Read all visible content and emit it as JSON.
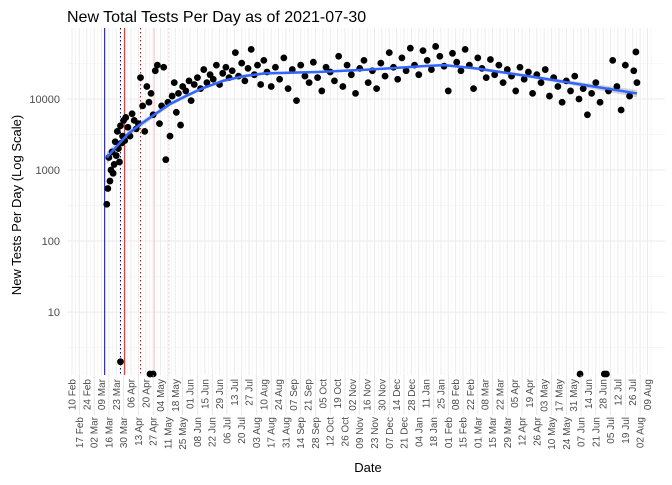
{
  "chart_data": {
    "type": "scatter",
    "title": "New Total Tests Per Day as of 2021-07-30",
    "xlabel": "Date",
    "ylabel": "New Tests Per Day (Log Scale)",
    "y_scale": "log10",
    "ylim": [
      1.3,
      100000
    ],
    "y_ticks": [
      10,
      100,
      1000,
      10000
    ],
    "y_tick_labels": [
      "10",
      "100",
      "1000",
      "10000"
    ],
    "x_axis_start": "2020-02-10",
    "x_tick_step_days": 7,
    "x_tick_labels": [
      "10 Feb",
      "17 Feb",
      "24 Feb",
      "02 Mar",
      "09 Mar",
      "16 Mar",
      "23 Mar",
      "30 Mar",
      "06 Apr",
      "13 Apr",
      "20 Apr",
      "27 Apr",
      "04 May",
      "11 May",
      "18 May",
      "25 May",
      "01 Jun",
      "08 Jun",
      "15 Jun",
      "22 Jun",
      "29 Jun",
      "06 Jul",
      "13 Jul",
      "20 Jul",
      "27 Jul",
      "03 Aug",
      "10 Aug",
      "17 Aug",
      "24 Aug",
      "31 Aug",
      "07 Sep",
      "14 Sep",
      "21 Sep",
      "28 Sep",
      "05 Oct",
      "12 Oct",
      "19 Oct",
      "26 Oct",
      "02 Nov",
      "09 Nov",
      "16 Nov",
      "23 Nov",
      "30 Nov",
      "07 Dec",
      "14 Dec",
      "21 Dec",
      "28 Dec",
      "04 Jan",
      "11 Jan",
      "18 Jan",
      "25 Jan",
      "01 Feb",
      "08 Feb",
      "15 Feb",
      "22 Feb",
      "01 Mar",
      "08 Mar",
      "15 Mar",
      "22 Mar",
      "29 Mar",
      "05 Apr",
      "12 Apr",
      "19 Apr",
      "26 Apr",
      "03 May",
      "10 May",
      "17 May",
      "24 May",
      "31 May",
      "07 Jun",
      "14 Jun",
      "21 Jun",
      "28 Jun",
      "05 Jul",
      "12 Jul",
      "19 Jul",
      "26 Jul",
      "02 Aug",
      "09 Aug"
    ],
    "grid": true,
    "reference_lines": [
      {
        "date": "2020-03-12",
        "color": "#0000ff",
        "style": "solid"
      },
      {
        "date": "2020-03-27",
        "color": "#0000ff",
        "style": "dotted"
      },
      {
        "date": "2020-03-31",
        "color": "#ff0000",
        "style": "solid"
      },
      {
        "date": "2020-04-15",
        "color": "#ff0000",
        "style": "dotted"
      },
      {
        "date": "2020-04-28",
        "color": "#ffc0cb",
        "style": "solid"
      },
      {
        "date": "2020-05-12",
        "color": "#ffc0cb",
        "style": "dotted"
      }
    ],
    "points_start_date": "2020-03-14",
    "points": [
      [
        0,
        330
      ],
      [
        1,
        550
      ],
      [
        2,
        1500
      ],
      [
        3,
        700
      ],
      [
        4,
        1000
      ],
      [
        5,
        1800
      ],
      [
        6,
        900
      ],
      [
        7,
        1200
      ],
      [
        8,
        2500
      ],
      [
        9,
        1600
      ],
      [
        10,
        3500
      ],
      [
        11,
        2000
      ],
      [
        12,
        1300
      ],
      [
        13,
        2
      ],
      [
        13,
        4200
      ],
      [
        14,
        2400
      ],
      [
        15,
        3000
      ],
      [
        16,
        5000
      ],
      [
        17,
        2600
      ],
      [
        18,
        5500
      ],
      [
        20,
        4000
      ],
      [
        22,
        3000
      ],
      [
        24,
        6200
      ],
      [
        26,
        5000
      ],
      [
        28,
        3800
      ],
      [
        30,
        4500
      ],
      [
        32,
        20000
      ],
      [
        34,
        8000
      ],
      [
        36,
        3500
      ],
      [
        38,
        15000
      ],
      [
        40,
        9000
      ],
      [
        41,
        1
      ],
      [
        42,
        12000
      ],
      [
        44,
        1
      ],
      [
        44,
        6000
      ],
      [
        46,
        25000
      ],
      [
        48,
        30000
      ],
      [
        50,
        4500
      ],
      [
        52,
        8000
      ],
      [
        54,
        28000
      ],
      [
        56,
        1400
      ],
      [
        58,
        9000
      ],
      [
        60,
        3000
      ],
      [
        62,
        11000
      ],
      [
        64,
        17000
      ],
      [
        66,
        6500
      ],
      [
        68,
        12000
      ],
      [
        70,
        4300
      ],
      [
        72,
        15000
      ],
      [
        75,
        13000
      ],
      [
        78,
        18000
      ],
      [
        80,
        9500
      ],
      [
        83,
        16000
      ],
      [
        86,
        20000
      ],
      [
        89,
        14000
      ],
      [
        92,
        26000
      ],
      [
        95,
        17000
      ],
      [
        98,
        22000
      ],
      [
        101,
        19000
      ],
      [
        104,
        30000
      ],
      [
        107,
        16000
      ],
      [
        110,
        23000
      ],
      [
        113,
        28000
      ],
      [
        116,
        20000
      ],
      [
        119,
        25000
      ],
      [
        122,
        45000
      ],
      [
        125,
        21000
      ],
      [
        128,
        32000
      ],
      [
        131,
        18000
      ],
      [
        134,
        27000
      ],
      [
        137,
        50000
      ],
      [
        140,
        22000
      ],
      [
        143,
        30000
      ],
      [
        146,
        16000
      ],
      [
        149,
        35000
      ],
      [
        152,
        24000
      ],
      [
        156,
        15000
      ],
      [
        160,
        28000
      ],
      [
        164,
        19000
      ],
      [
        168,
        38000
      ],
      [
        172,
        14000
      ],
      [
        176,
        26000
      ],
      [
        180,
        9500
      ],
      [
        184,
        30000
      ],
      [
        188,
        21000
      ],
      [
        192,
        17000
      ],
      [
        196,
        33000
      ],
      [
        200,
        20000
      ],
      [
        204,
        13000
      ],
      [
        208,
        28000
      ],
      [
        212,
        24000
      ],
      [
        216,
        18000
      ],
      [
        220,
        40000
      ],
      [
        224,
        15000
      ],
      [
        228,
        30000
      ],
      [
        232,
        22000
      ],
      [
        236,
        12000
      ],
      [
        240,
        27000
      ],
      [
        244,
        35000
      ],
      [
        248,
        17000
      ],
      [
        252,
        25000
      ],
      [
        256,
        14000
      ],
      [
        260,
        32000
      ],
      [
        264,
        21000
      ],
      [
        268,
        45000
      ],
      [
        272,
        28000
      ],
      [
        276,
        19000
      ],
      [
        280,
        38000
      ],
      [
        284,
        25000
      ],
      [
        288,
        52000
      ],
      [
        292,
        30000
      ],
      [
        296,
        22000
      ],
      [
        300,
        48000
      ],
      [
        304,
        35000
      ],
      [
        308,
        26000
      ],
      [
        312,
        55000
      ],
      [
        316,
        40000
      ],
      [
        320,
        29000
      ],
      [
        324,
        13000
      ],
      [
        328,
        44000
      ],
      [
        332,
        33000
      ],
      [
        336,
        25000
      ],
      [
        340,
        50000
      ],
      [
        344,
        30000
      ],
      [
        348,
        14000
      ],
      [
        352,
        38000
      ],
      [
        356,
        27000
      ],
      [
        360,
        20000
      ],
      [
        364,
        36000
      ],
      [
        368,
        22000
      ],
      [
        372,
        30000
      ],
      [
        376,
        17000
      ],
      [
        380,
        26000
      ],
      [
        384,
        21000
      ],
      [
        388,
        13000
      ],
      [
        392,
        28000
      ],
      [
        396,
        19000
      ],
      [
        400,
        24000
      ],
      [
        404,
        12000
      ],
      [
        408,
        22000
      ],
      [
        412,
        17000
      ],
      [
        416,
        26000
      ],
      [
        420,
        11000
      ],
      [
        424,
        20000
      ],
      [
        428,
        15000
      ],
      [
        432,
        9000
      ],
      [
        436,
        18000
      ],
      [
        440,
        13000
      ],
      [
        444,
        21000
      ],
      [
        448,
        10000
      ],
      [
        449,
        1
      ],
      [
        452,
        14000
      ],
      [
        456,
        6000
      ],
      [
        460,
        12000
      ],
      [
        464,
        17000
      ],
      [
        468,
        9000
      ],
      [
        472,
        1
      ],
      [
        474,
        1
      ],
      [
        476,
        13000
      ],
      [
        480,
        35000
      ],
      [
        484,
        15000
      ],
      [
        488,
        7000
      ],
      [
        492,
        30000
      ],
      [
        496,
        11000
      ],
      [
        500,
        25000
      ],
      [
        502,
        46000
      ],
      [
        503,
        17000
      ]
    ],
    "smooth": {
      "color": "#3366ff",
      "method": "loess",
      "fit": [
        [
          0,
          1500
        ],
        [
          10,
          2200
        ],
        [
          20,
          3200
        ],
        [
          30,
          4200
        ],
        [
          45,
          6000
        ],
        [
          60,
          8500
        ],
        [
          75,
          11000
        ],
        [
          90,
          14000
        ],
        [
          110,
          18000
        ],
        [
          130,
          21000
        ],
        [
          150,
          23000
        ],
        [
          200,
          24000
        ],
        [
          250,
          26000
        ],
        [
          300,
          29000
        ],
        [
          320,
          30000
        ],
        [
          350,
          27000
        ],
        [
          400,
          21000
        ],
        [
          450,
          16000
        ],
        [
          503,
          12000
        ]
      ],
      "ci_rel": [
        0.2,
        0.12,
        0.1,
        0.1,
        0.08,
        0.07,
        0.06,
        0.05,
        0.05,
        0.05,
        0.05,
        0.04,
        0.04,
        0.04,
        0.04,
        0.05,
        0.05,
        0.07,
        0.12
      ]
    }
  }
}
